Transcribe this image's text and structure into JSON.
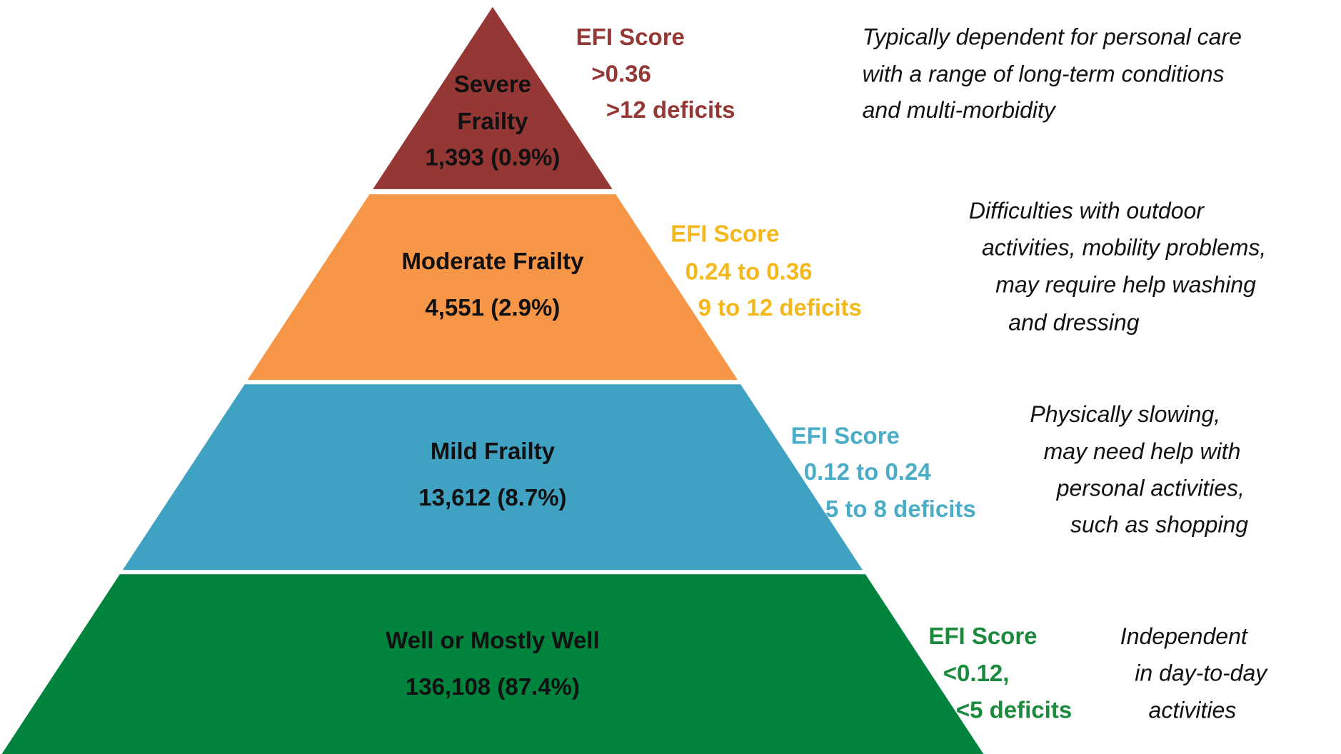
{
  "levels": [
    {
      "name": [
        "Severe",
        "Frailty"
      ],
      "count": "1,393 (0.9%)",
      "color": "#953735",
      "score_color": "#953735",
      "score": [
        "EFI Score",
        ">0.36",
        ">12 deficits"
      ],
      "description": [
        "Typically dependent for personal care",
        "with a range of long-term conditions",
        "and multi-morbidity"
      ]
    },
    {
      "name": [
        "Moderate Frailty"
      ],
      "count": "4,551 (2.9%)",
      "color": "#f79646",
      "score_color": "#f5b81c",
      "score": [
        "EFI Score",
        "0.24 to 0.36",
        "9 to 12 deficits"
      ],
      "description": [
        "Difficulties with outdoor",
        "activities, mobility problems,",
        "may require help washing",
        "and dressing"
      ]
    },
    {
      "name": [
        "Mild Frailty"
      ],
      "count": "13,612 (8.7%)",
      "color": "#3fa2c2",
      "score_color": "#4aacc6",
      "score": [
        "EFI Score",
        "0.12 to 0.24",
        "5 to 8 deficits"
      ],
      "description": [
        "Physically slowing,",
        "may need help with",
        "personal activities,",
        "such as shopping"
      ]
    },
    {
      "name": [
        "Well or Mostly Well"
      ],
      "count": "136,108 (87.4%)",
      "color": "#00843d",
      "score_color": "#1a8a3c",
      "score": [
        "EFI Score",
        "<0.12,",
        "<5 deficits"
      ],
      "description": [
        "Independent",
        "in day-to-day",
        "activities"
      ]
    }
  ]
}
